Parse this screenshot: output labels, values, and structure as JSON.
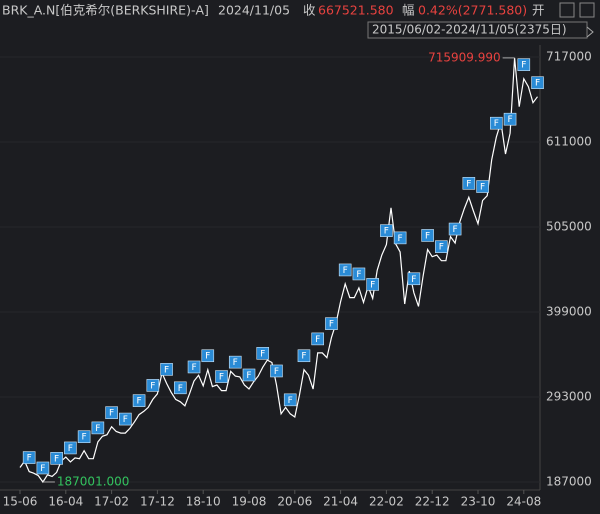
{
  "chart_data": {
    "type": "line",
    "title": "BRK_A.N[伯克希尔(BERKSHIRE)-A]",
    "date": "2024/11/05",
    "close_label": "收",
    "close": "667521.580",
    "change_label": "幅",
    "change": "0.42%(2771.580)",
    "open_label": "开",
    "range": "2015/06/02-2024/11/05(2375日)",
    "event_label": "F",
    "max_annotation": {
      "value": 715909.99,
      "label": "715909.990"
    },
    "min_annotation": {
      "value": 187001,
      "label": "187001.000"
    },
    "color": "#ffffff",
    "up_color": "#e8423f",
    "down_color": "#33c25e",
    "event_color": "#2a8bd6",
    "grid": true,
    "ylim": [
      177000,
      732000
    ],
    "yticks": [
      187000,
      293000,
      399000,
      505000,
      611000,
      717000
    ],
    "categories": [
      "15-06",
      null,
      null,
      null,
      null,
      null,
      null,
      null,
      null,
      null,
      "16-04",
      null,
      null,
      null,
      null,
      null,
      null,
      null,
      null,
      null,
      "17-02",
      null,
      null,
      null,
      null,
      null,
      null,
      null,
      null,
      null,
      "17-12",
      null,
      null,
      null,
      null,
      null,
      null,
      null,
      null,
      null,
      "18-10",
      null,
      null,
      null,
      null,
      null,
      null,
      null,
      null,
      null,
      "19-08",
      null,
      null,
      null,
      null,
      null,
      null,
      null,
      null,
      null,
      "20-06",
      null,
      null,
      null,
      null,
      null,
      null,
      null,
      null,
      null,
      "21-04",
      null,
      null,
      null,
      null,
      null,
      null,
      null,
      null,
      null,
      "22-02",
      null,
      null,
      null,
      null,
      null,
      null,
      null,
      null,
      null,
      "22-12",
      null,
      null,
      null,
      null,
      null,
      null,
      null,
      null,
      null,
      "23-10",
      null,
      null,
      null,
      null,
      null,
      null,
      null,
      null,
      null,
      "24-08",
      null,
      null,
      null
    ],
    "values": [
      205000,
      213000,
      200000,
      198000,
      195000,
      187001,
      196000,
      194000,
      199000,
      213000,
      218000,
      212000,
      217000,
      216000,
      226000,
      216000,
      216000,
      237000,
      244000,
      246000,
      256000,
      250000,
      248000,
      248000,
      254000,
      262000,
      271000,
      275000,
      280000,
      290000,
      297000,
      323000,
      310000,
      299000,
      290000,
      287000,
      282000,
      297000,
      313000,
      320000,
      307000,
      327000,
      306000,
      308000,
      301000,
      301000,
      325000,
      319000,
      318000,
      308000,
      303000,
      312000,
      319000,
      330000,
      339000,
      336000,
      308000,
      272000,
      280000,
      272000,
      268000,
      295000,
      327000,
      320000,
      303000,
      348000,
      348000,
      342000,
      367000,
      385000,
      412000,
      434000,
      417000,
      417000,
      429000,
      411000,
      431000,
      416000,
      451000,
      470000,
      483000,
      529000,
      484000,
      474000,
      409000,
      450000,
      423000,
      406000,
      443000,
      477000,
      468000,
      470000,
      463000,
      463000,
      493000,
      485000,
      511000,
      528000,
      542000,
      525000,
      509000,
      538000,
      544000,
      589000,
      617000,
      636000,
      596000,
      622000,
      715909.99,
      655000,
      690000,
      680000,
      660000,
      667521.58
    ]
  }
}
